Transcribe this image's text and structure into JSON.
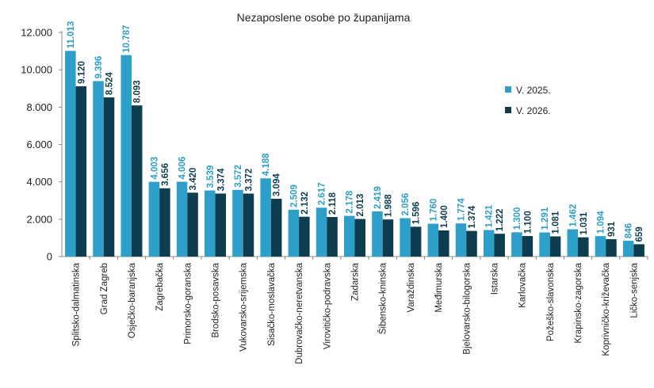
{
  "chart_data": {
    "type": "bar",
    "title": "Nezaposlene osobe po županijama",
    "xlabel": "",
    "ylabel": "",
    "ylim": [
      0,
      12000
    ],
    "yticks": [
      0,
      2000,
      4000,
      6000,
      8000,
      10000,
      12000
    ],
    "ytick_labels": [
      "0",
      "2.000",
      "4.000",
      "6.000",
      "8.000",
      "10.000",
      "12.000"
    ],
    "grid": false,
    "legend_position": "right",
    "categories": [
      "Splitsko-dalmatinska",
      "Grad Zagreb",
      "Osječko-baranjska",
      "Zagrebačka",
      "Primorsko-goranska",
      "Brodsko-posavska",
      "Vukovarsko-srijemska",
      "Sisačko-moslavačka",
      "Dubrovačko-neretvanska",
      "Virovitičko-podravska",
      "Zadarska",
      "Šibensko-kninska",
      "Varaždinska",
      "Međimurska",
      "Bjelovarsko-bilogorska",
      "Istarska",
      "Karlovačka",
      "Požeško-slavonska",
      "Krapinsko-zagorska",
      "Koprivničko-križevačka",
      "Ličko-senjska"
    ],
    "series": [
      {
        "name": "V. 2025.",
        "color": "#2e9fc8",
        "values": [
          11013,
          9396,
          10787,
          4003,
          4006,
          3539,
          3572,
          4188,
          2509,
          2617,
          2178,
          2419,
          2056,
          1760,
          1774,
          1421,
          1300,
          1291,
          1462,
          1094,
          846
        ],
        "labels": [
          "11.013",
          "9.396",
          "10.787",
          "4.003",
          "4.006",
          "3.539",
          "3.572",
          "4.188",
          "2.509",
          "2.617",
          "2.178",
          "2.419",
          "2.056",
          "1.760",
          "1.774",
          "1.421",
          "1.300",
          "1.291",
          "1.462",
          "1.094",
          "846"
        ]
      },
      {
        "name": "V. 2026.",
        "color": "#0d3d4f",
        "values": [
          9120,
          8524,
          8093,
          3656,
          3420,
          3374,
          3372,
          3094,
          2132,
          2118,
          2013,
          1988,
          1596,
          1400,
          1374,
          1222,
          1100,
          1081,
          1031,
          931,
          659
        ],
        "labels": [
          "9.120",
          "8.524",
          "8.093",
          "3.656",
          "3.420",
          "3.374",
          "3.372",
          "3.094",
          "2.132",
          "2.118",
          "2.013",
          "1.988",
          "1.596",
          "1.400",
          "1.374",
          "1.222",
          "1.100",
          "1.081",
          "1.031",
          "931",
          "659"
        ]
      }
    ]
  }
}
